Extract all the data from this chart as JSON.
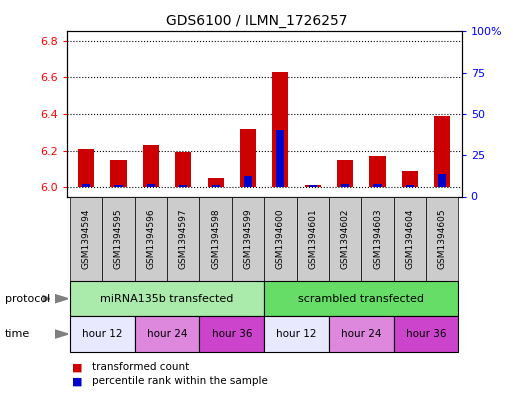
{
  "title": "GDS6100 / ILMN_1726257",
  "samples": [
    "GSM1394594",
    "GSM1394595",
    "GSM1394596",
    "GSM1394597",
    "GSM1394598",
    "GSM1394599",
    "GSM1394600",
    "GSM1394601",
    "GSM1394602",
    "GSM1394603",
    "GSM1394604",
    "GSM1394605"
  ],
  "red_values": [
    6.21,
    6.15,
    6.23,
    6.19,
    6.05,
    6.32,
    6.63,
    6.01,
    6.15,
    6.17,
    6.09,
    6.39
  ],
  "blue_values": [
    6.02,
    6.01,
    6.02,
    6.01,
    6.01,
    6.06,
    6.31,
    6.01,
    6.02,
    6.02,
    6.01,
    6.07
  ],
  "ylim_left": [
    5.95,
    6.85
  ],
  "ylim_right": [
    0,
    100
  ],
  "yticks_left": [
    6.0,
    6.2,
    6.4,
    6.6,
    6.8
  ],
  "yticks_right": [
    0,
    25,
    50,
    75,
    100
  ],
  "ytick_labels_right": [
    "0",
    "25",
    "50",
    "75",
    "100%"
  ],
  "bar_width": 0.5,
  "red_color": "#cc0000",
  "blue_color": "#0000cc",
  "protocol_labels": [
    "miRNA135b transfected",
    "scrambled transfected"
  ],
  "protocol_color_1": "#aaeaaa",
  "protocol_color_2": "#66dd66",
  "time_color_12": "#e8e8ff",
  "time_color_24": "#dd88dd",
  "time_color_36": "#cc44cc",
  "sample_box_color": "#cccccc",
  "legend_items": [
    {
      "label": "transformed count",
      "color": "#cc0000"
    },
    {
      "label": "percentile rank within the sample",
      "color": "#0000cc"
    }
  ],
  "base_value": 6.0
}
